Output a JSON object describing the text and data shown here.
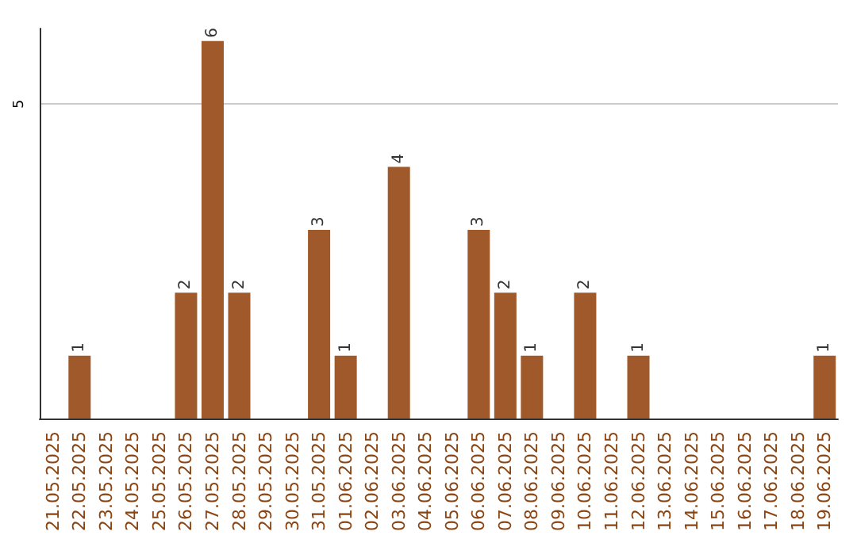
{
  "chart_data": {
    "type": "bar",
    "categories": [
      "21.05.2025",
      "22.05.2025",
      "23.05.2025",
      "24.05.2025",
      "25.05.2025",
      "26.05.2025",
      "27.05.2025",
      "28.05.2025",
      "29.05.2025",
      "30.05.2025",
      "31.05.2025",
      "01.06.2025",
      "02.06.2025",
      "03.06.2025",
      "04.06.2025",
      "05.06.2025",
      "06.06.2025",
      "07.06.2025",
      "08.06.2025",
      "09.06.2025",
      "10.06.2025",
      "11.06.2025",
      "12.06.2025",
      "13.06.2025",
      "14.06.2025",
      "15.06.2025",
      "16.06.2025",
      "17.06.2025",
      "18.06.2025",
      "19.06.2025"
    ],
    "values": [
      0,
      1,
      0,
      0,
      0,
      2,
      6,
      2,
      0,
      0,
      3,
      1,
      0,
      4,
      0,
      0,
      3,
      2,
      1,
      0,
      2,
      0,
      1,
      0,
      0,
      0,
      0,
      0,
      0,
      1
    ],
    "value_labels": [
      null,
      "1",
      null,
      null,
      null,
      "2",
      "6",
      "2",
      null,
      null,
      "3",
      "1",
      null,
      "4",
      null,
      null,
      "3",
      "2",
      "1",
      null,
      "2",
      null,
      "1",
      null,
      null,
      null,
      null,
      null,
      null,
      "1"
    ],
    "color": "#a0592a",
    "ylim": [
      0,
      6.2
    ],
    "yticks": [
      5
    ],
    "grid": "y"
  }
}
